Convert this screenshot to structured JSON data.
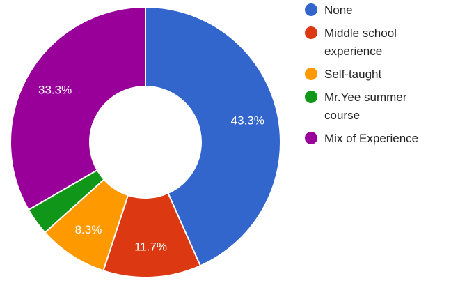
{
  "chart_data": {
    "type": "pie",
    "donut": true,
    "legend_position": "right",
    "categories": [
      "None",
      "Middle school experience",
      "Self-taught",
      "Mr.Yee summer course",
      "Mix of Experience"
    ],
    "values": [
      43.3,
      11.7,
      8.3,
      3.3,
      33.3
    ],
    "data_labels": [
      "43.3%",
      "11.7%",
      "8.3%",
      "",
      "33.3%"
    ],
    "colors": [
      "#3366cc",
      "#dc3912",
      "#ff9900",
      "#109618",
      "#990099"
    ],
    "legend": [
      {
        "lines": [
          "None"
        ]
      },
      {
        "lines": [
          "Middle school",
          "experience"
        ]
      },
      {
        "lines": [
          "Self-taught"
        ]
      },
      {
        "lines": [
          "Mr.Yee summer",
          "course"
        ]
      },
      {
        "lines": [
          "Mix of Experience"
        ]
      }
    ]
  }
}
